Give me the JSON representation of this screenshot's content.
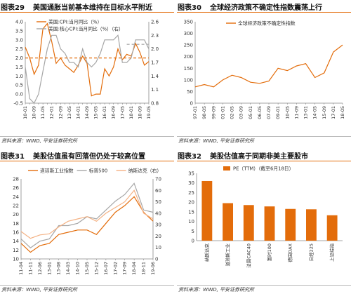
{
  "panels": [
    {
      "tag": "图表29",
      "title": "美国通胀当前基本维持在目标水平附近",
      "source": "资料来源：WIND, 平安证券研究所"
    },
    {
      "tag": "图表30",
      "title": "全球经济政策不确定性指数震荡上行",
      "source": "资料来源：WIND, 平安证券研究所"
    },
    {
      "tag": "图表31",
      "title": "美股估值虽有回落但仍处于较高位置",
      "source": "资料来源：WIND, 平安证券研究所"
    },
    {
      "tag": "图表32",
      "title": "美股估值高于同期非美主要股市",
      "source": "资料来源：WIND, 平安证券研究所"
    }
  ],
  "colors": {
    "orange": "#E36C0A",
    "gray": "#A6A6A6",
    "gray_dashed": "#B0B0B0",
    "title_rule": "#E36C0A"
  },
  "chart_data": [
    {
      "type": "line",
      "x": [
        "10-01",
        "10-05",
        "10-09",
        "11-01",
        "11-05",
        "11-09",
        "12-01",
        "12-05",
        "12-09",
        "13-01",
        "13-05",
        "13-09",
        "14-01",
        "14-05",
        "14-09",
        "15-01",
        "15-05",
        "15-09",
        "16-01",
        "16-05",
        "16-09",
        "17-01",
        "17-05",
        "17-09",
        "18-01",
        "18-05",
        "18-09",
        "19-01",
        "19-05"
      ],
      "series": [
        {
          "name": "美国:CPI:当月同比（%）",
          "axis": "left",
          "style": "solid",
          "color": "#E36C0A",
          "values": [
            2.6,
            2.0,
            1.1,
            1.6,
            3.6,
            3.9,
            2.9,
            1.7,
            2.0,
            1.6,
            1.4,
            1.2,
            1.6,
            2.1,
            1.7,
            -0.1,
            0.0,
            0.0,
            1.4,
            1.0,
            1.5,
            2.5,
            1.9,
            2.2,
            2.1,
            2.8,
            2.3,
            1.6,
            1.8
          ]
        },
        {
          "name": "美国:核心CPI:当月同比（%）（右）",
          "axis": "right",
          "style": "solid",
          "color": "#A6A6A6",
          "values": [
            1.6,
            0.9,
            0.8,
            1.0,
            1.5,
            2.0,
            2.3,
            2.3,
            2.0,
            1.9,
            1.7,
            1.7,
            1.6,
            2.0,
            1.7,
            1.6,
            1.7,
            1.9,
            2.2,
            2.2,
            2.2,
            2.3,
            1.7,
            1.7,
            1.8,
            2.2,
            2.2,
            2.2,
            2.0
          ]
        },
        {
          "name": "",
          "axis": "left",
          "style": "dashed",
          "color": "#E36C0A",
          "values": [
            2.0,
            2.0,
            2.0,
            2.0,
            2.0,
            2.0,
            2.0,
            2.0,
            2.0,
            2.0,
            2.0,
            2.0,
            2.0,
            2.0,
            2.0,
            2.0,
            2.0,
            2.0,
            2.0,
            2.0,
            2.0,
            2.0,
            2.0,
            2.0,
            2.0,
            2.0,
            2.0,
            2.0,
            2.0
          ]
        },
        {
          "name": "",
          "axis": "right",
          "style": "dashed",
          "color": "#B0B0B0",
          "values": [
            null,
            null,
            null,
            null,
            null,
            null,
            null,
            null,
            null,
            null,
            null,
            null,
            null,
            null,
            null,
            null,
            null,
            null,
            null,
            null,
            null,
            null,
            null,
            2.1,
            2.1,
            2.1,
            2.1,
            2.1,
            2.1
          ]
        }
      ],
      "yticks_left": [
        "-0.5",
        "0.0",
        "0.5",
        "1.0",
        "1.5",
        "2.0",
        "2.5",
        "3.0",
        "3.5",
        "4.0"
      ],
      "yticks_right": [
        "0.8",
        "1.1",
        "1.4",
        "1.7",
        "2.0",
        "2.3",
        "2.6"
      ],
      "ylim_left": [
        -0.5,
        4.0
      ],
      "ylim_right": [
        0.8,
        2.6
      ],
      "legend": "top-left",
      "grid": false
    },
    {
      "type": "line",
      "x": [
        "97-01",
        "98-05",
        "99-09",
        "01-01",
        "02-05",
        "03-09",
        "05-01",
        "06-05",
        "07-09",
        "09-01",
        "10-05",
        "11-09",
        "13-01",
        "14-05",
        "15-09",
        "17-01",
        "18-05"
      ],
      "series": [
        {
          "name": "全球经济政策不确定性指数",
          "color": "#E36C0A",
          "values": [
            70,
            80,
            70,
            100,
            120,
            110,
            90,
            85,
            95,
            150,
            140,
            160,
            170,
            110,
            130,
            220,
            250
          ]
        }
      ],
      "yticks": [
        "0",
        "50",
        "100",
        "150",
        "200",
        "250",
        "300",
        "350"
      ],
      "ylim": [
        0,
        350
      ],
      "legend": "top-left",
      "grid": false
    },
    {
      "type": "line",
      "x": [
        "11-04",
        "11-11",
        "12-06",
        "13-01",
        "13-08",
        "14-03",
        "14-10",
        "15-05",
        "15-12",
        "16-07",
        "17-02",
        "17-09",
        "18-04",
        "18-11",
        "19-06"
      ],
      "series": [
        {
          "name": "道琼斯工业指数",
          "axis": "left",
          "color": "#E36C0A",
          "values": [
            13.5,
            11.5,
            13.0,
            13.5,
            15.5,
            16.0,
            16.5,
            16.5,
            15.5,
            18.0,
            20.5,
            22.0,
            24.0,
            20.5,
            18.5
          ]
        },
        {
          "name": "标普500",
          "axis": "left",
          "color": "#A6A6A6",
          "values": [
            14.5,
            12.5,
            14.0,
            14.5,
            17.5,
            17.5,
            18.0,
            19.5,
            19.0,
            21.0,
            23.0,
            24.5,
            27.0,
            21.0,
            20.5
          ]
        },
        {
          "name": "纳斯达克（右）",
          "axis": "right",
          "color": "#F4B183",
          "values": [
            24,
            18,
            21,
            22,
            28,
            33,
            35,
            37,
            33,
            40,
            45,
            50,
            60,
            40,
            35
          ]
        }
      ],
      "yticks_left": [
        "10",
        "12",
        "14",
        "16",
        "18",
        "20",
        "22",
        "24",
        "26",
        "28"
      ],
      "yticks_right": [
        "0",
        "10",
        "20",
        "30",
        "40",
        "50",
        "60",
        "70"
      ],
      "ylim_left": [
        10,
        28
      ],
      "ylim_right": [
        0,
        70
      ],
      "legend": "top",
      "grid": false
    },
    {
      "type": "bar",
      "categories": [
        "纳斯达克",
        "道琼斯工业",
        "法国CAC40",
        "富时100",
        "德国DAX",
        "日经225",
        "上证综指"
      ],
      "series": [
        {
          "name": "PE（TTM）（截至6月18日）",
          "color": "#E36C0A",
          "values": [
            31.0,
            19.5,
            18.5,
            17.8,
            16.5,
            16.3,
            13.2
          ]
        }
      ],
      "yticks": [
        "0",
        "5",
        "10",
        "15",
        "20",
        "25",
        "30",
        "35"
      ],
      "ylim": [
        0,
        35
      ],
      "legend": "top",
      "grid": false
    }
  ]
}
